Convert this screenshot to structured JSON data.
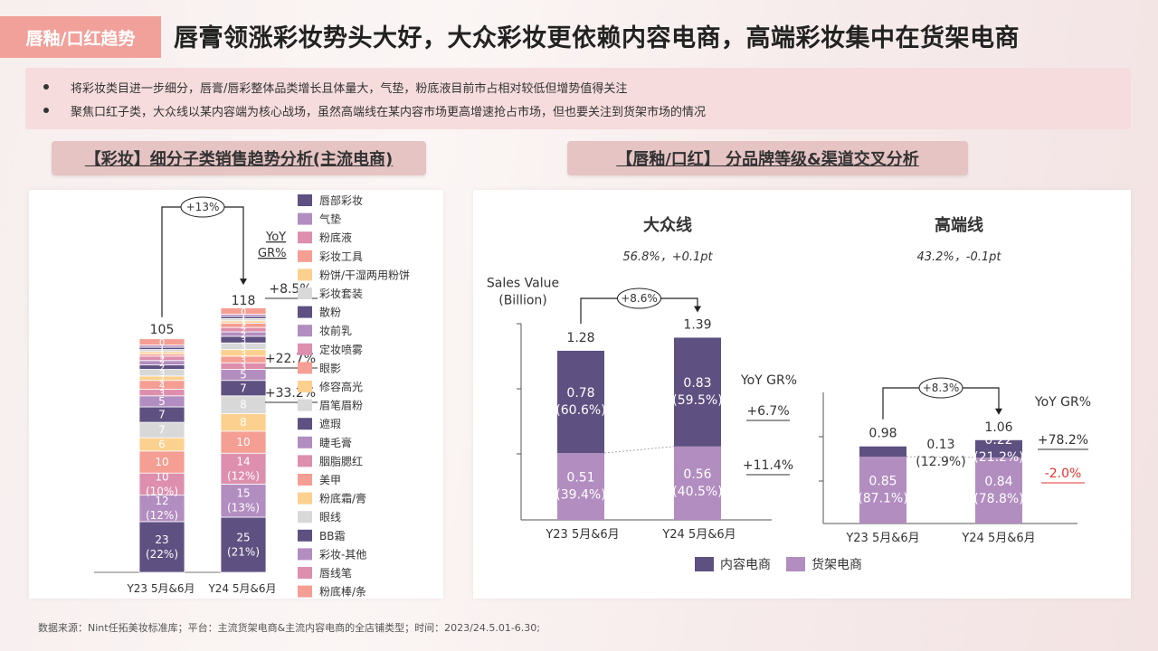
{
  "header": {
    "tag": "唇釉/口红趋势",
    "headline": "唇膏领涨彩妆势头大好，大众彩妆更依赖内容电商，高端彩妆集中在货架电商"
  },
  "bullets": [
    "将彩妆类目进一步细分，唇膏/唇彩整体品类增长且体量大，气垫，粉底液目前市占相对较低但增势值得关注",
    "聚焦口红子类，大众线以某内容端为核心战场，虽然高端线在某内容市场更高增速抢占市场，但也要关注到货架市场的情况"
  ],
  "sections": {
    "left_title": "【彩妆】细分子类销售趋势分析(主流电商)",
    "right_title": "【唇釉/口红】 分品牌等级&渠道交叉分析"
  },
  "footnote": "数据来源：Nint任拓美妆标准库；平台：主流货架电商&主流内容电商的全店铺类型；时间：2023/24.5.01-6.30;",
  "colors": {
    "lip": "#5e5080",
    "cushion": "#b28dc0",
    "foundation_liquid": "#dd8fad",
    "tools": "#f59e93",
    "powder": "#fcd08e",
    "set": "#d8d8d8",
    "loose": "#5e5080",
    "content": "#5e5080",
    "shelf": "#b28dc0",
    "negative": "#e0342f"
  },
  "chart_data": [
    {
      "type": "bar",
      "stacked": true,
      "categories": [
        "Y23 5月&6月",
        "Y24 5月&6月"
      ],
      "totals": [
        105,
        118
      ],
      "growth_label": "+13%",
      "yoy_header": "YoY GR%",
      "yoy_values": [
        "+8.5%",
        "+22.7%",
        "+33.2%"
      ],
      "series": [
        {
          "name": "唇部彩妆",
          "color": "#5e5080",
          "values": [
            23,
            25
          ],
          "labels": [
            "23\n(22%)",
            "25\n(21%)"
          ]
        },
        {
          "name": "气垫",
          "color": "#b28dc0",
          "values": [
            12,
            15
          ],
          "labels": [
            "12\n(12%)",
            "15\n(13%)"
          ]
        },
        {
          "name": "粉底液",
          "color": "#dd8fad",
          "values": [
            10,
            14
          ],
          "labels": [
            "10\n(10%)",
            "14\n(12%)"
          ]
        },
        {
          "name": "彩妆工具",
          "color": "#f59e93",
          "values": [
            10,
            10
          ],
          "labels": [
            "10",
            "10"
          ]
        },
        {
          "name": "粉饼/干湿两用粉饼",
          "color": "#fcd08e",
          "values": [
            6,
            8
          ],
          "labels": [
            "6",
            "8"
          ]
        },
        {
          "name": "彩妆套装",
          "color": "#d8d8d8",
          "values": [
            7,
            8
          ],
          "labels": [
            "7",
            "8"
          ]
        },
        {
          "name": "散粉",
          "color": "#5e5080",
          "values": [
            7,
            7
          ],
          "labels": [
            "7",
            "7"
          ]
        },
        {
          "name": "妆前乳",
          "color": "#b28dc0",
          "values": [
            5,
            5
          ],
          "labels": [
            "5",
            "5"
          ]
        },
        {
          "name": "定妆喷雾",
          "color": "#dd8fad",
          "values": [
            3,
            3
          ],
          "labels": [
            "3",
            "3"
          ]
        },
        {
          "name": "眼影",
          "color": "#f59e93",
          "values": [
            4,
            3
          ],
          "labels": [
            "4",
            "3"
          ]
        },
        {
          "name": "修容高光",
          "color": "#fcd08e",
          "values": [
            2,
            3
          ],
          "labels": [
            "2",
            "3"
          ]
        },
        {
          "name": "眉笔眉粉",
          "color": "#d8d8d8",
          "values": [
            3,
            3
          ],
          "labels": [
            "3",
            "3"
          ]
        },
        {
          "name": "遮瑕",
          "color": "#5e5080",
          "values": [
            2,
            3
          ],
          "labels": [
            "2",
            "3"
          ]
        },
        {
          "name": "睫毛膏",
          "color": "#b28dc0",
          "values": [
            2,
            2
          ],
          "labels": [
            "2",
            "2"
          ]
        },
        {
          "name": "胭脂腮红",
          "color": "#dd8fad",
          "values": [
            2,
            2
          ],
          "labels": [
            "2",
            "2"
          ]
        },
        {
          "name": "美甲",
          "color": "#f59e93",
          "values": [
            1,
            2
          ],
          "labels": [
            "1",
            "2"
          ]
        },
        {
          "name": "粉底霜/膏",
          "color": "#fcd08e",
          "values": [
            1,
            1
          ],
          "labels": [
            "1",
            "1"
          ]
        },
        {
          "name": "眼线",
          "color": "#d8d8d8",
          "values": [
            1,
            1
          ],
          "labels": [
            "1",
            "1"
          ]
        },
        {
          "name": "BB霜",
          "color": "#5e5080",
          "values": [
            1,
            1
          ],
          "labels": [
            "1",
            "1"
          ]
        },
        {
          "name": "彩妆-其他",
          "color": "#b28dc0",
          "values": [
            1,
            1
          ],
          "labels": [
            "1",
            "1"
          ]
        },
        {
          "name": "唇线笔",
          "color": "#dd8fad",
          "values": [
            0,
            0
          ],
          "labels": [
            "0",
            "0"
          ]
        },
        {
          "name": "粉底棒/条",
          "color": "#f59e93",
          "values": [
            0,
            0
          ],
          "labels": [
            "0",
            "0"
          ]
        }
      ]
    },
    {
      "type": "bar",
      "stacked": true,
      "title": "大众线",
      "subtitle": "56.8%，+0.1pt",
      "ylabel": "Sales Value\n(Billion)",
      "categories": [
        "Y23 5月&6月",
        "Y24 5月&6月"
      ],
      "totals": [
        "1.28",
        "1.39"
      ],
      "growth_label": "+8.6%",
      "yoy_header": "YoY GR%",
      "series": [
        {
          "name": "内容电商",
          "color": "#5e5080",
          "values": [
            0.78,
            0.83
          ],
          "labels": [
            "0.78\n(60.6%)",
            "0.83\n(59.5%)"
          ],
          "yoy": "+6.7%"
        },
        {
          "name": "货架电商",
          "color": "#b28dc0",
          "values": [
            0.51,
            0.56
          ],
          "labels": [
            "0.51\n(39.4%)",
            "0.56\n(40.5%)"
          ],
          "yoy": "+11.4%"
        }
      ]
    },
    {
      "type": "bar",
      "stacked": true,
      "title": "高端线",
      "subtitle": "43.2%，-0.1pt",
      "categories": [
        "Y23 5月&6月",
        "Y24 5月&6月"
      ],
      "totals": [
        "0.98",
        "1.06"
      ],
      "growth_label": "+8.3%",
      "yoy_header": "YoY GR%",
      "series": [
        {
          "name": "内容电商",
          "color": "#5e5080",
          "values": [
            0.13,
            0.22
          ],
          "labels": [
            "0.13\n(12.9%)",
            "0.22\n(21.2%)"
          ],
          "yoy": "+78.2%"
        },
        {
          "name": "货架电商",
          "color": "#b28dc0",
          "values": [
            0.85,
            0.84
          ],
          "labels": [
            "0.85\n(87.1%)",
            "0.84\n(78.8%)"
          ],
          "yoy": "-2.0%"
        }
      ]
    }
  ],
  "legend": [
    "内容电商",
    "货架电商"
  ]
}
